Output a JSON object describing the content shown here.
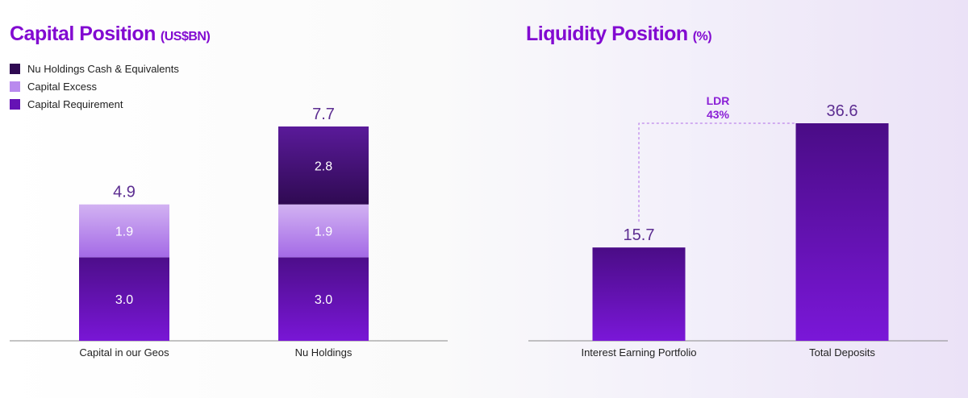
{
  "colors": {
    "cash_top": "#5a1a9a",
    "cash_bottom": "#2f0a52",
    "excess_top": "#d2b2f2",
    "excess_bottom": "#a46ae6",
    "req_top": "#4d0e8a",
    "req_bottom": "#7916d6",
    "bar_top": "#4a0c86",
    "bar_bottom": "#7a17d8",
    "title": "#820ad1",
    "total_label": "#5c2d91",
    "ldr": "#8a1fd6"
  },
  "chart_data": [
    {
      "type": "bar",
      "stacked": true,
      "title": "Capital Position",
      "unit": "(US$BN)",
      "categories": [
        "Capital in our Geos",
        "Nu Holdings"
      ],
      "series": [
        {
          "name": "Capital Requirement",
          "values": [
            3.0,
            3.0
          ],
          "labels": [
            "3.0",
            "3.0"
          ]
        },
        {
          "name": "Capital Excess",
          "values": [
            1.9,
            1.9
          ],
          "labels": [
            "1.9",
            "1.9"
          ]
        },
        {
          "name": "Nu Holdings Cash & Equivalents",
          "values": [
            0,
            2.8
          ],
          "labels": [
            "",
            "2.8"
          ]
        }
      ],
      "totals": [
        4.9,
        7.7
      ],
      "total_labels": [
        "4.9",
        "7.7"
      ],
      "legend": [
        "Nu Holdings Cash & Equivalents",
        "Capital Excess",
        "Capital Requirement"
      ],
      "legend_position": "top-left",
      "ylim": [
        0,
        7.7
      ]
    },
    {
      "type": "bar",
      "title": "Liquidity Position",
      "unit": "(%)",
      "categories": [
        "Interest Earning Portfolio",
        "Total Deposits"
      ],
      "values": [
        15.7,
        36.6
      ],
      "value_labels": [
        "15.7",
        "36.6"
      ],
      "annotation": {
        "line1": "LDR",
        "line2": "43%"
      },
      "ylim": [
        0,
        36.6
      ]
    }
  ]
}
